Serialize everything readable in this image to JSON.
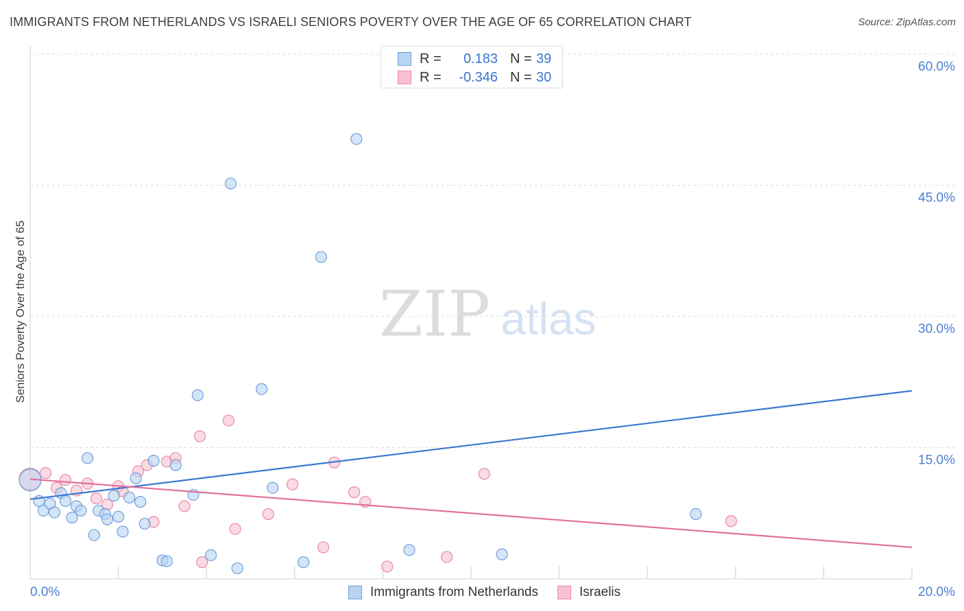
{
  "header": {
    "title": "IMMIGRANTS FROM NETHERLANDS VS ISRAELI SENIORS POVERTY OVER THE AGE OF 65 CORRELATION CHART",
    "source": "Source: ZipAtlas.com"
  },
  "watermark": {
    "zip": "ZIP",
    "atlas": "atlas"
  },
  "legend": {
    "rows": [
      {
        "r_label": "R =",
        "r_value": "0.183",
        "n_label": "N =",
        "n_value": "39"
      },
      {
        "r_label": "R =",
        "r_value": "-0.346",
        "n_label": "N =",
        "n_value": "30"
      }
    ]
  },
  "bottom_legend": {
    "series1": "Immigrants from Netherlands",
    "series2": "Israelis"
  },
  "chart_data": {
    "type": "scatter",
    "title": "IMMIGRANTS FROM NETHERLANDS VS ISRAELI SENIORS POVERTY OVER THE AGE OF 65 CORRELATION CHART",
    "xlabel": "",
    "ylabel": "Seniors Poverty Over the Age of 65",
    "xlim": [
      0,
      20
    ],
    "ylim": [
      0,
      60
    ],
    "x_tick_labels": {
      "left": "0.0%",
      "right": "20.0%"
    },
    "y_ticks": [
      {
        "value": 15,
        "label": "15.0%"
      },
      {
        "value": 30,
        "label": "30.0%"
      },
      {
        "value": 45,
        "label": "45.0%"
      },
      {
        "value": 60,
        "label": "60.0%"
      }
    ],
    "colors": {
      "blue_fill": "#b9d3f3",
      "blue_stroke": "#6f9fd8",
      "blue_line": "#3a78d0",
      "pink_fill": "#f7c1d2",
      "pink_stroke": "#e88aa8",
      "pink_line": "#e0709a"
    },
    "series": [
      {
        "name": "Immigrants from Netherlands",
        "color": "blue",
        "trend": {
          "x0": 0,
          "y0": 9.1,
          "x1": 20,
          "y1": 21.5
        },
        "points": [
          [
            0.0,
            11.3
          ],
          [
            0.2,
            8.9
          ],
          [
            0.3,
            7.8
          ],
          [
            0.45,
            8.6
          ],
          [
            0.55,
            7.6
          ],
          [
            0.7,
            9.8
          ],
          [
            0.8,
            8.9
          ],
          [
            0.95,
            7.0
          ],
          [
            1.05,
            8.3
          ],
          [
            1.15,
            7.8
          ],
          [
            1.3,
            13.8
          ],
          [
            1.45,
            5.0
          ],
          [
            1.55,
            7.8
          ],
          [
            1.7,
            7.4
          ],
          [
            1.75,
            6.8
          ],
          [
            1.9,
            9.5
          ],
          [
            2.0,
            7.1
          ],
          [
            2.1,
            5.4
          ],
          [
            2.25,
            9.3
          ],
          [
            2.4,
            11.5
          ],
          [
            2.5,
            8.8
          ],
          [
            2.6,
            6.3
          ],
          [
            2.8,
            13.5
          ],
          [
            3.0,
            2.1
          ],
          [
            3.1,
            2.0
          ],
          [
            3.3,
            13.0
          ],
          [
            3.7,
            9.6
          ],
          [
            3.8,
            21.0
          ],
          [
            4.1,
            2.7
          ],
          [
            4.55,
            45.2
          ],
          [
            4.7,
            1.2
          ],
          [
            5.25,
            21.7
          ],
          [
            5.5,
            10.4
          ],
          [
            6.2,
            1.9
          ],
          [
            6.6,
            36.8
          ],
          [
            7.4,
            50.3
          ],
          [
            8.6,
            3.3
          ],
          [
            10.7,
            2.8
          ],
          [
            15.1,
            7.4
          ]
        ]
      },
      {
        "name": "Israelis",
        "color": "pink",
        "trend": {
          "x0": 0,
          "y0": 11.4,
          "x1": 20,
          "y1": 3.6
        },
        "points": [
          [
            0.0,
            11.4
          ],
          [
            0.35,
            12.1
          ],
          [
            0.6,
            10.4
          ],
          [
            0.8,
            11.3
          ],
          [
            1.05,
            10.1
          ],
          [
            1.3,
            10.9
          ],
          [
            1.5,
            9.2
          ],
          [
            1.75,
            8.5
          ],
          [
            2.0,
            10.6
          ],
          [
            2.1,
            10.0
          ],
          [
            2.45,
            12.3
          ],
          [
            2.65,
            13.0
          ],
          [
            2.8,
            6.5
          ],
          [
            3.1,
            13.4
          ],
          [
            3.3,
            13.8
          ],
          [
            3.5,
            8.3
          ],
          [
            3.85,
            16.3
          ],
          [
            3.9,
            1.9
          ],
          [
            4.5,
            18.1
          ],
          [
            4.65,
            5.7
          ],
          [
            5.4,
            7.4
          ],
          [
            5.95,
            10.8
          ],
          [
            6.65,
            3.6
          ],
          [
            6.9,
            13.3
          ],
          [
            7.35,
            9.9
          ],
          [
            7.6,
            8.8
          ],
          [
            8.1,
            1.4
          ],
          [
            9.45,
            2.5
          ],
          [
            10.3,
            12.0
          ],
          [
            15.9,
            6.6
          ]
        ]
      }
    ]
  }
}
